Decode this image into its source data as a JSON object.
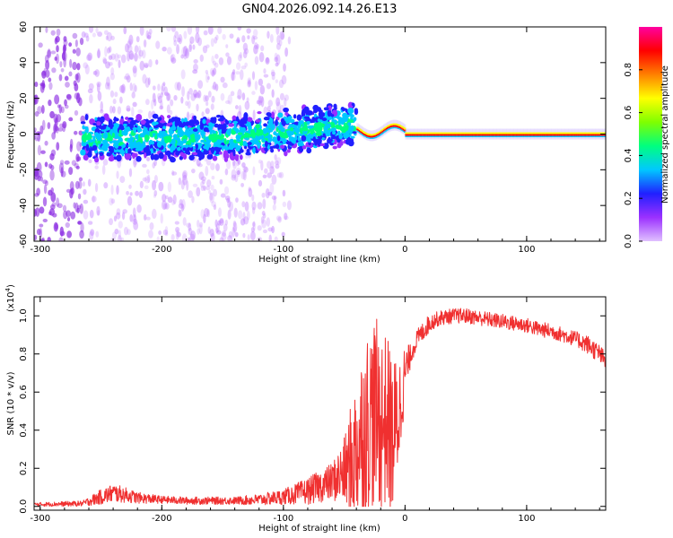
{
  "title": "GN04.2026.092.14.26.E13",
  "chart_data": [
    {
      "type": "heatmap",
      "xlabel": "Height of straight line (km)",
      "ylabel": "Frequency (Hz)",
      "xlim": [
        -305,
        165
      ],
      "ylim": [
        -60,
        60
      ],
      "x_ticks": [
        -300,
        -200,
        -100,
        0,
        100
      ],
      "y_ticks": [
        -60,
        -40,
        -20,
        0,
        20,
        40,
        60
      ],
      "colorbar": {
        "label": "Normalized spectral amplitude",
        "range": [
          0,
          1
        ],
        "ticks": [
          "0.0",
          "0.2",
          "0.4",
          "0.6",
          "0.8"
        ],
        "colors": [
          "#e0c0ff",
          "#9b30ff",
          "#2020ff",
          "#00c8ff",
          "#00ff7f",
          "#7fff00",
          "#ffff00",
          "#ff8000",
          "#ff0000",
          "#ff00a0"
        ]
      },
      "grid": false
    },
    {
      "type": "line",
      "xlabel": "Height of straight line (km)",
      "ylabel": "SNR (10 * v/v)",
      "yscale_label": "(x10",
      "yscale_exp": "4",
      "xlim": [
        -305,
        165
      ],
      "ylim": [
        -0.02,
        1.1
      ],
      "x_ticks": [
        -300,
        -200,
        -100,
        0,
        100
      ],
      "y_ticks": [
        "0.0",
        "0.2",
        "0.4",
        "0.6",
        "0.8",
        "1.0"
      ],
      "line_color": "#f03030",
      "grid": false,
      "envelope": {
        "x": [
          -305,
          -265,
          -250,
          -240,
          -230,
          -220,
          -200,
          -180,
          -160,
          -140,
          -120,
          -100,
          -80,
          -60,
          -50,
          -45,
          -40,
          -35,
          -30,
          -25,
          -20,
          -15,
          -12,
          -10,
          -8,
          -5,
          0,
          5,
          10,
          15,
          20,
          25,
          30,
          40,
          50,
          60,
          70,
          80,
          90,
          100,
          110,
          120,
          130,
          140,
          150,
          160,
          165
        ],
        "base": [
          0.01,
          0.015,
          0.05,
          0.07,
          0.06,
          0.045,
          0.035,
          0.03,
          0.03,
          0.03,
          0.035,
          0.05,
          0.08,
          0.13,
          0.18,
          0.22,
          0.3,
          0.4,
          0.45,
          0.5,
          0.45,
          0.45,
          0.4,
          0.35,
          0.4,
          0.5,
          0.7,
          0.8,
          0.88,
          0.92,
          0.96,
          0.98,
          0.99,
          1.0,
          1.0,
          0.99,
          0.98,
          0.97,
          0.96,
          0.95,
          0.93,
          0.92,
          0.9,
          0.88,
          0.85,
          0.8,
          0.76
        ],
        "amp": [
          0.01,
          0.015,
          0.04,
          0.05,
          0.04,
          0.03,
          0.02,
          0.02,
          0.02,
          0.02,
          0.03,
          0.04,
          0.07,
          0.1,
          0.18,
          0.3,
          0.38,
          0.45,
          0.5,
          0.5,
          0.5,
          0.45,
          0.45,
          0.4,
          0.4,
          0.3,
          0.15,
          0.05,
          0.05,
          0.05,
          0.05,
          0.04,
          0.04,
          0.04,
          0.04,
          0.04,
          0.04,
          0.04,
          0.04,
          0.04,
          0.04,
          0.04,
          0.04,
          0.04,
          0.05,
          0.05,
          0.05
        ]
      }
    }
  ]
}
